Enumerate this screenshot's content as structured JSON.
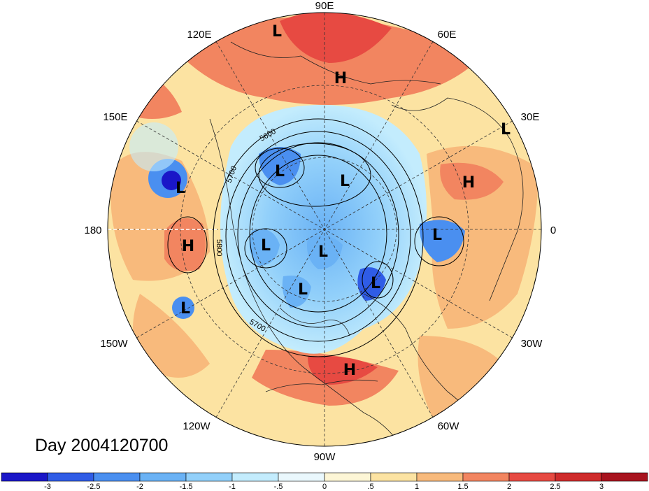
{
  "title": "Day 2004120700",
  "longitude_labels": [
    {
      "text": "90E",
      "angle_deg": 90
    },
    {
      "text": "60E",
      "angle_deg": 60
    },
    {
      "text": "30E",
      "angle_deg": 30
    },
    {
      "text": "0",
      "angle_deg": 0
    },
    {
      "text": "30W",
      "angle_deg": -30
    },
    {
      "text": "60W",
      "angle_deg": -60
    },
    {
      "text": "90W",
      "angle_deg": -90
    },
    {
      "text": "120W",
      "angle_deg": -120
    },
    {
      "text": "150W",
      "angle_deg": -150
    },
    {
      "text": "180",
      "angle_deg": 180
    },
    {
      "text": "150E",
      "angle_deg": 150
    },
    {
      "text": "120E",
      "angle_deg": 120
    }
  ],
  "pressure_centers": [
    {
      "type": "L",
      "region": "eastern siberia (top)"
    },
    {
      "type": "H",
      "region": "central siberia"
    },
    {
      "type": "L",
      "region": "middle east (30E)"
    },
    {
      "type": "L",
      "region": "bering sea"
    },
    {
      "type": "L",
      "region": "arctic siberia"
    },
    {
      "type": "L",
      "region": "arctic ocean"
    },
    {
      "type": "H",
      "region": "europe"
    },
    {
      "type": "H",
      "region": "north pacific"
    },
    {
      "type": "L",
      "region": "alaska"
    },
    {
      "type": "L",
      "region": "canadian arctic"
    },
    {
      "type": "L",
      "region": "north atlantic (west)"
    },
    {
      "type": "L",
      "region": "north atlantic (east)"
    },
    {
      "type": "L",
      "region": "hudson bay"
    },
    {
      "type": "L",
      "region": "central pacific"
    },
    {
      "type": "H",
      "region": "caribbean"
    }
  ],
  "contour_labels": [
    "5600",
    "5700",
    "5800",
    "5700"
  ],
  "colorbar": {
    "ticks": [
      "-3",
      "-2.5",
      "-2",
      "-1.5",
      "-1",
      "-.5",
      "0",
      ".5",
      "1",
      "1.5",
      "2",
      "2.5",
      "3"
    ],
    "colors": [
      "#1a16c8",
      "#2f5ce6",
      "#4a8ff0",
      "#6ab2f5",
      "#92d0fa",
      "#c3ecfd",
      "#eaf8fd",
      "#fdf6d6",
      "#fce3a2",
      "#f8ba7c",
      "#f28560",
      "#e74a42",
      "#cf2b2b",
      "#a8131e"
    ]
  }
}
